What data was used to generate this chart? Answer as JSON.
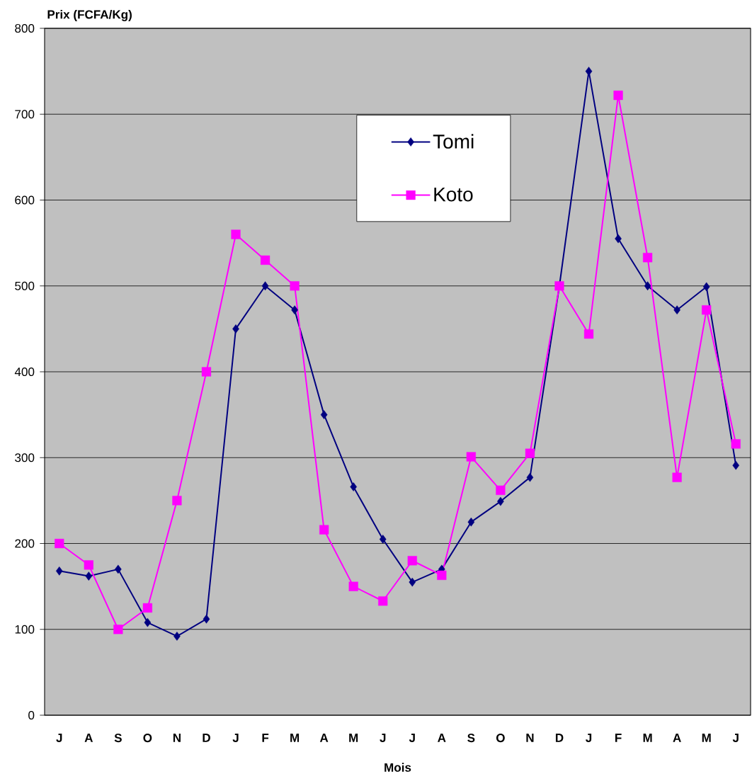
{
  "chart_data": {
    "type": "line",
    "xlabel": "Mois",
    "ylabel": "Prix (FCFA/Kg)",
    "categories": [
      "J",
      "A",
      "S",
      "O",
      "N",
      "D",
      "J",
      "F",
      "M",
      "A",
      "M",
      "J",
      "J",
      "A",
      "S",
      "O",
      "N",
      "D",
      "J",
      "F",
      "M",
      "A",
      "M",
      "J"
    ],
    "series": [
      {
        "name": "Tomi",
        "color": "#000080",
        "marker": "diamond",
        "values": [
          168,
          162,
          170,
          108,
          92,
          112,
          450,
          500,
          472,
          350,
          266,
          205,
          155,
          170,
          225,
          249,
          277,
          500,
          750,
          555,
          500,
          472,
          499,
          291
        ]
      },
      {
        "name": "Koto",
        "color": "#ff00ff",
        "marker": "square",
        "values": [
          200,
          175,
          100,
          125,
          250,
          400,
          560,
          530,
          500,
          216,
          150,
          133,
          180,
          163,
          301,
          262,
          305,
          500,
          444,
          722,
          533,
          277,
          472,
          316
        ]
      }
    ],
    "ylim": [
      0,
      800
    ],
    "yticks": [
      0,
      100,
      200,
      300,
      400,
      500,
      600,
      700,
      800
    ],
    "grid": "y",
    "legend": "top"
  }
}
